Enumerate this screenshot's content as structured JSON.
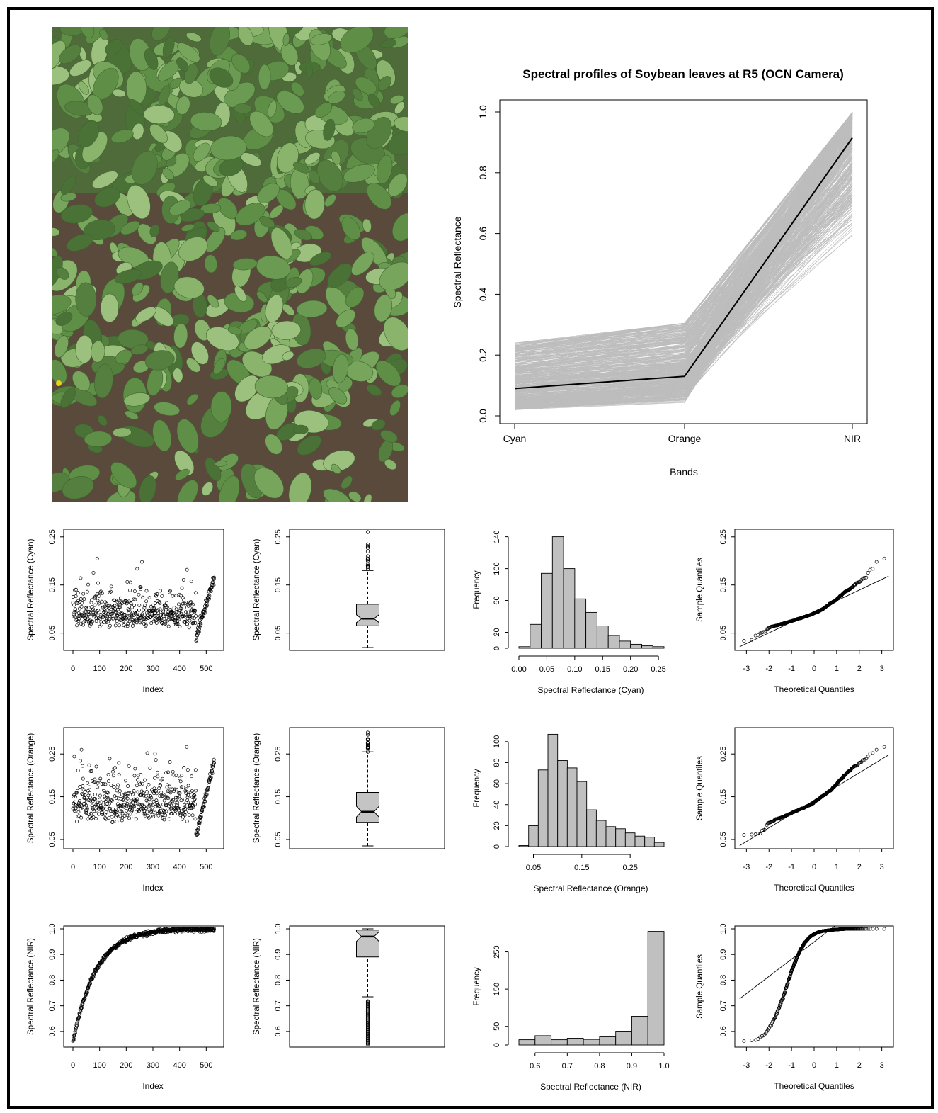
{
  "photo": {
    "sky_color": "#4f6b3a",
    "leaf_color": "#6e9a55",
    "soil_color": "#5a4a3c",
    "flower_color": "#e8d21a"
  },
  "chart_data": [
    {
      "id": "profile",
      "type": "line",
      "title": "Spectral profiles of Soybean leaves at R5 (OCN Camera)",
      "xlabel": "Bands",
      "ylabel": "Spectral Reflectance",
      "categories": [
        "Cyan",
        "Orange",
        "NIR"
      ],
      "ylim": [
        0,
        1.0
      ],
      "yticks": [
        0.0,
        0.2,
        0.4,
        0.6,
        0.8,
        1.0
      ],
      "mean_series": [
        0.09,
        0.13,
        0.915
      ],
      "profile_ranges": {
        "Cyan": [
          0.02,
          0.26
        ],
        "Orange": [
          0.035,
          0.305
        ],
        "NIR": [
          0.55,
          1.0
        ]
      },
      "profile_count": 531,
      "colors": {
        "profiles": "#bdbdbd",
        "mean": "#000000"
      }
    },
    {
      "band": "Cyan",
      "index_plot": {
        "type": "scatter",
        "xlabel": "Index",
        "ylabel": "Spectral Reflectance (Cyan)",
        "xticks": [
          0,
          100,
          200,
          300,
          400,
          500
        ],
        "yticks": [
          0.05,
          0.15,
          0.25
        ],
        "ylim": [
          0.02,
          0.26
        ],
        "n": 531
      },
      "boxplot": {
        "type": "box",
        "ylabel": "Spectral Reflectance (Cyan)",
        "yticks": [
          0.05,
          0.15,
          0.25
        ],
        "ylim": [
          0.02,
          0.26
        ],
        "min": 0.02,
        "q1": 0.065,
        "median": 0.08,
        "q3": 0.11,
        "whisker_high": 0.18,
        "outliers": [
          0.19,
          0.2,
          0.21,
          0.22,
          0.23,
          0.26
        ]
      },
      "histogram": {
        "type": "bar",
        "xlabel": "Spectral Reflectance (Cyan)",
        "ylabel": "Frequency",
        "xticks": [
          "0.00",
          "0.05",
          "0.10",
          "0.15",
          "0.20",
          "0.25"
        ],
        "yticks": [
          0,
          20,
          60,
          100,
          140
        ],
        "bin_edges": [
          0.0,
          0.02,
          0.04,
          0.06,
          0.08,
          0.1,
          0.12,
          0.14,
          0.16,
          0.18,
          0.2,
          0.22,
          0.24,
          0.26
        ],
        "counts": [
          2,
          30,
          94,
          140,
          100,
          62,
          45,
          28,
          16,
          9,
          5,
          3,
          2
        ],
        "ylim": [
          0,
          145
        ]
      },
      "qq": {
        "type": "scatter",
        "xlabel": "Theoretical Quantiles",
        "ylabel": "Sample Quantiles",
        "xticks": [
          -3,
          -2,
          -1,
          0,
          1,
          2,
          3
        ],
        "yticks": [
          0.05,
          0.15,
          0.25
        ],
        "ylim": [
          0.02,
          0.26
        ]
      }
    },
    {
      "band": "Orange",
      "index_plot": {
        "type": "scatter",
        "xlabel": "Index",
        "ylabel": "Spectral Reflectance (Orange)",
        "xticks": [
          0,
          100,
          200,
          300,
          400,
          500
        ],
        "yticks": [
          0.05,
          0.15,
          0.25
        ],
        "ylim": [
          0.035,
          0.305
        ],
        "n": 531
      },
      "boxplot": {
        "type": "box",
        "ylabel": "Spectral Reflectance (Orange)",
        "yticks": [
          0.05,
          0.15,
          0.25
        ],
        "ylim": [
          0.035,
          0.305
        ],
        "min": 0.035,
        "q1": 0.09,
        "median": 0.115,
        "q3": 0.16,
        "whisker_high": 0.255,
        "outliers": [
          0.265,
          0.275,
          0.285,
          0.295,
          0.3
        ]
      },
      "histogram": {
        "type": "bar",
        "xlabel": "Spectral Reflectance (Orange)",
        "ylabel": "Frequency",
        "xticks": [
          "0.05",
          "0.15",
          "0.25"
        ],
        "yticks": [
          0,
          20,
          40,
          60,
          80,
          100
        ],
        "bin_edges": [
          0.02,
          0.04,
          0.06,
          0.08,
          0.1,
          0.12,
          0.14,
          0.16,
          0.18,
          0.2,
          0.22,
          0.24,
          0.26,
          0.28,
          0.3,
          0.32
        ],
        "counts": [
          1,
          20,
          73,
          107,
          82,
          75,
          62,
          35,
          25,
          19,
          17,
          13,
          10,
          9,
          4
        ],
        "ylim": [
          0,
          110
        ]
      },
      "qq": {
        "type": "scatter",
        "xlabel": "Theoretical Quantiles",
        "ylabel": "Sample Quantiles",
        "xticks": [
          -3,
          -2,
          -1,
          0,
          1,
          2,
          3
        ],
        "yticks": [
          0.05,
          0.15,
          0.25
        ],
        "ylim": [
          0.035,
          0.305
        ]
      }
    },
    {
      "band": "NIR",
      "index_plot": {
        "type": "scatter",
        "xlabel": "Index",
        "ylabel": "Spectral Reflectance (NIR)",
        "xticks": [
          0,
          100,
          200,
          300,
          400,
          500
        ],
        "yticks": [
          0.6,
          0.7,
          0.8,
          0.9,
          1.0
        ],
        "ylim": [
          0.55,
          1.0
        ],
        "n": 531
      },
      "boxplot": {
        "type": "box",
        "ylabel": "Spectral Reflectance (NIR)",
        "yticks": [
          0.6,
          0.7,
          0.8,
          0.9,
          1.0
        ],
        "ylim": [
          0.55,
          1.0
        ],
        "min": 0.735,
        "q1": 0.89,
        "median": 0.97,
        "q3": 0.995,
        "whisker_high": 1.0,
        "outliers_low_from": 0.55,
        "outliers_low_to": 0.72
      },
      "histogram": {
        "type": "bar",
        "xlabel": "Spectral Reflectance (NIR)",
        "ylabel": "Frequency",
        "xticks": [
          "0.6",
          "0.7",
          "0.8",
          "0.9",
          "1.0"
        ],
        "yticks": [
          0,
          50,
          150,
          250
        ],
        "bin_edges": [
          0.55,
          0.6,
          0.65,
          0.7,
          0.75,
          0.8,
          0.85,
          0.9,
          0.95,
          1.0
        ],
        "counts": [
          14,
          25,
          14,
          18,
          15,
          22,
          37,
          77,
          305
        ],
        "ylim": [
          0,
          310
        ]
      },
      "qq": {
        "type": "scatter",
        "xlabel": "Theoretical Quantiles",
        "ylabel": "Sample Quantiles",
        "xticks": [
          -3,
          -2,
          -1,
          0,
          1,
          2,
          3
        ],
        "yticks": [
          0.6,
          0.7,
          0.8,
          0.9,
          1.0
        ],
        "ylim": [
          0.55,
          1.0
        ]
      }
    }
  ]
}
